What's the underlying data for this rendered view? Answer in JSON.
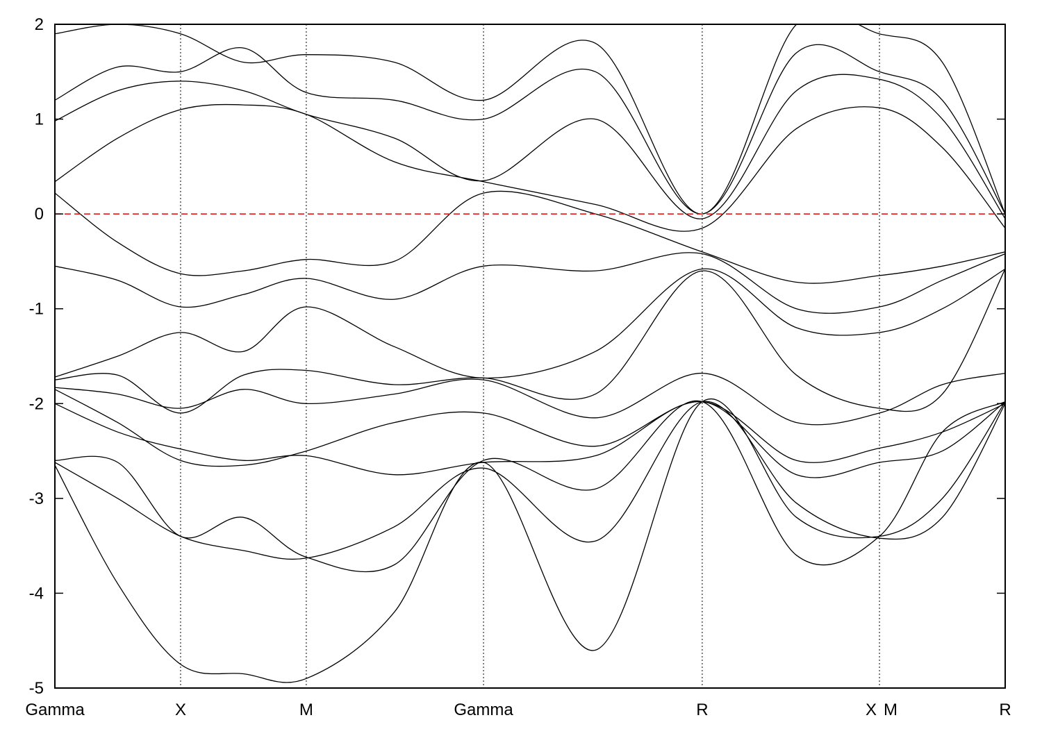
{
  "chart_data": {
    "type": "line",
    "title": "",
    "xlabel": "",
    "ylabel": "",
    "ylim": [
      -5,
      2
    ],
    "yticks": [
      -5,
      -4,
      -3,
      -2,
      -1,
      0,
      1,
      2
    ],
    "xlim": [
      0,
      7.56
    ],
    "kpoints": [
      {
        "label": "Gamma",
        "x": 0
      },
      {
        "label": "X",
        "x": 1.0
      },
      {
        "label": "M",
        "x": 2.0
      },
      {
        "label": "Gamma",
        "x": 3.41
      },
      {
        "label": "R",
        "x": 5.15
      },
      {
        "label": "X",
        "x": 6.56
      },
      {
        "label": "M",
        "x": 6.56
      },
      {
        "label": "R",
        "x": 7.56
      }
    ],
    "path_break_x": 6.56,
    "fermi_level": 0,
    "colors": {
      "bands": "#000000",
      "fermi": "#e31a1c",
      "axis": "#000000"
    },
    "series": [
      {
        "x": [
          0,
          0.5,
          1.0,
          1.5,
          2.0,
          2.7,
          3.41,
          4.3,
          5.15,
          5.9,
          6.56,
          7.06,
          7.56
        ],
        "y": [
          -2.65,
          -3.9,
          -4.75,
          -4.85,
          -4.9,
          -4.2,
          -2.62,
          -4.6,
          -1.98,
          -3.2,
          -3.4,
          -3.0,
          -1.98
        ]
      },
      {
        "x": [
          0,
          0.5,
          1.0,
          1.5,
          2.0,
          2.7,
          3.41,
          4.3,
          5.15,
          5.9,
          6.56,
          7.06,
          7.56
        ],
        "y": [
          -2.62,
          -3.0,
          -3.4,
          -3.55,
          -3.63,
          -3.3,
          -2.68,
          -3.45,
          -1.98,
          -3.05,
          -3.42,
          -3.2,
          -2.0
        ]
      },
      {
        "x": [
          0,
          0.5,
          1.0,
          1.5,
          2.0,
          2.7,
          3.41,
          4.3,
          5.15,
          5.9,
          6.56,
          7.06,
          7.56
        ],
        "y": [
          -2.6,
          -2.62,
          -3.4,
          -3.2,
          -3.62,
          -3.7,
          -2.6,
          -2.9,
          -1.98,
          -3.6,
          -3.4,
          -2.3,
          -1.98
        ]
      },
      {
        "x": [
          0,
          0.5,
          1.0,
          1.5,
          2.0,
          2.7,
          3.41,
          4.3,
          5.15,
          5.9,
          6.56,
          7.06,
          7.56
        ],
        "y": [
          -2.0,
          -2.3,
          -2.48,
          -2.6,
          -2.55,
          -2.75,
          -2.62,
          -2.55,
          -1.98,
          -2.75,
          -2.62,
          -2.5,
          -1.98
        ]
      },
      {
        "x": [
          0,
          0.5,
          1.0,
          1.5,
          2.0,
          2.7,
          3.41,
          4.3,
          5.15,
          5.9,
          6.56,
          7.06,
          7.56
        ],
        "y": [
          -1.85,
          -2.2,
          -2.6,
          -2.65,
          -2.5,
          -2.2,
          -2.1,
          -2.45,
          -1.98,
          -2.6,
          -2.47,
          -2.3,
          -2.0
        ]
      },
      {
        "x": [
          0,
          0.5,
          1.0,
          1.5,
          2.0,
          2.7,
          3.41,
          4.3,
          5.15,
          5.9,
          6.56,
          7.06,
          7.56
        ],
        "y": [
          -1.83,
          -1.9,
          -2.05,
          -1.85,
          -2.0,
          -1.9,
          -1.75,
          -2.15,
          -1.68,
          -2.2,
          -2.1,
          -1.8,
          -1.68
        ]
      },
      {
        "x": [
          0,
          0.5,
          1.0,
          1.5,
          2.0,
          2.7,
          3.41,
          4.3,
          5.15,
          5.9,
          6.56,
          7.06,
          7.56
        ],
        "y": [
          -1.75,
          -1.7,
          -2.1,
          -1.7,
          -1.65,
          -1.8,
          -1.73,
          -1.9,
          -0.6,
          -1.7,
          -2.05,
          -1.9,
          -0.58
        ]
      },
      {
        "x": [
          0,
          0.5,
          1.0,
          1.5,
          2.0,
          2.7,
          3.41,
          4.3,
          5.15,
          5.9,
          6.56,
          7.06,
          7.56
        ],
        "y": [
          -1.72,
          -1.5,
          -1.25,
          -1.45,
          -0.98,
          -1.4,
          -1.73,
          -1.45,
          -0.58,
          -1.2,
          -1.25,
          -1.0,
          -0.58
        ]
      },
      {
        "x": [
          0,
          0.5,
          1.0,
          1.5,
          2.0,
          2.7,
          3.41,
          4.3,
          5.15,
          5.9,
          6.56,
          7.06,
          7.56
        ],
        "y": [
          -0.55,
          -0.7,
          -0.98,
          -0.85,
          -0.68,
          -0.9,
          -0.55,
          -0.6,
          -0.42,
          -1.0,
          -0.98,
          -0.7,
          -0.42
        ]
      },
      {
        "x": [
          0,
          0.5,
          1.0,
          1.5,
          2.0,
          2.7,
          3.41,
          4.3,
          5.15,
          5.9,
          6.56,
          7.06,
          7.56
        ],
        "y": [
          0.22,
          -0.3,
          -0.63,
          -0.6,
          -0.48,
          -0.5,
          0.22,
          0.0,
          -0.4,
          -0.72,
          -0.65,
          -0.55,
          -0.4
        ]
      },
      {
        "x": [
          0,
          0.5,
          1.0,
          1.5,
          2.0,
          2.7,
          3.41,
          4.3,
          5.15,
          5.9,
          6.56,
          7.06,
          7.56
        ],
        "y": [
          0.34,
          0.8,
          1.1,
          1.15,
          1.05,
          0.55,
          0.34,
          0.1,
          -0.15,
          0.9,
          1.12,
          0.7,
          -0.15
        ]
      },
      {
        "x": [
          0,
          0.5,
          1.0,
          1.5,
          2.0,
          2.7,
          3.41,
          4.3,
          5.15,
          5.9,
          6.56,
          7.06,
          7.56
        ],
        "y": [
          0.98,
          1.3,
          1.4,
          1.3,
          1.05,
          0.8,
          0.35,
          1.0,
          -0.05,
          1.3,
          1.42,
          1.0,
          -0.05
        ]
      },
      {
        "x": [
          0,
          0.5,
          1.0,
          1.5,
          2.0,
          2.7,
          3.41,
          4.3,
          5.15,
          5.9,
          6.56,
          7.06,
          7.56
        ],
        "y": [
          1.2,
          1.55,
          1.5,
          1.75,
          1.28,
          1.2,
          1.0,
          1.5,
          0.0,
          1.7,
          1.5,
          1.2,
          0.0
        ]
      },
      {
        "x": [
          0,
          0.5,
          1.0,
          1.5,
          2.0,
          2.7,
          3.41,
          4.3,
          5.15,
          5.9,
          6.56,
          7.06,
          7.56
        ],
        "y": [
          1.9,
          2.0,
          1.9,
          1.6,
          1.68,
          1.6,
          1.2,
          1.8,
          0.0,
          2.0,
          1.9,
          1.6,
          0.0
        ]
      }
    ]
  }
}
